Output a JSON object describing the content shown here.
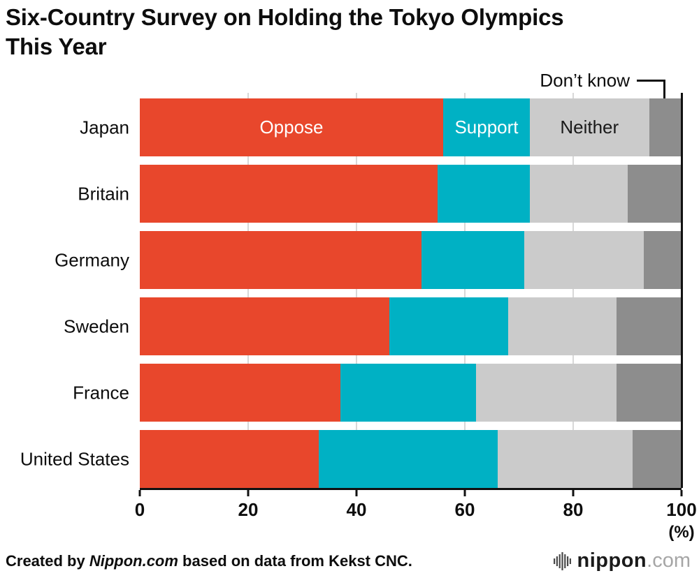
{
  "title": {
    "line1": "Six-Country Survey on Holding the Tokyo Olympics",
    "line2": "This Year"
  },
  "callout": {
    "label": "Don’t know"
  },
  "axis": {
    "unit": "(%)"
  },
  "footer": {
    "credit_prefix": "Created by ",
    "credit_brand": "Nippon.com",
    "credit_suffix": " based on data from Kekst CNC.",
    "logo_text": "nippon",
    "logo_suffix": ".com"
  },
  "colors": {
    "oppose": "#e8472c",
    "support": "#00b1c4",
    "neither": "#cbcbcb",
    "dont_know": "#8d8d8d",
    "axis": "#111111",
    "gridline": "#d8d8d8"
  },
  "chart_data": {
    "type": "bar",
    "orientation": "horizontal",
    "stacked": true,
    "title": "Six-Country Survey on Holding the Tokyo Olympics This Year",
    "unit": "%",
    "xlim": [
      0,
      100
    ],
    "x_ticks": [
      0,
      20,
      40,
      60,
      80,
      100
    ],
    "grid": "vertical gridlines at 20, 40, 60, 80",
    "categories": [
      "Japan",
      "Britain",
      "Germany",
      "Sweden",
      "France",
      "United States"
    ],
    "series": [
      {
        "name": "Oppose",
        "color": "#e8472c",
        "label_color": "#ffffff",
        "values": [
          56,
          55,
          52,
          46,
          37,
          33
        ]
      },
      {
        "name": "Support",
        "color": "#00b1c4",
        "label_color": "#ffffff",
        "values": [
          16,
          17,
          19,
          22,
          25,
          33
        ]
      },
      {
        "name": "Neither",
        "color": "#cbcbcb",
        "label_color": "#1a1a1a",
        "values": [
          22,
          18,
          22,
          20,
          26,
          25
        ]
      },
      {
        "name": "Don’t know",
        "color": "#8d8d8d",
        "label_color": "#1a1a1a",
        "values": [
          6,
          10,
          7,
          12,
          12,
          9
        ]
      }
    ],
    "series_label_placement": "Oppose/Support/Neither labeled inside first bar; Don’t know labeled via callout at top right",
    "source": "Kekst CNC"
  }
}
